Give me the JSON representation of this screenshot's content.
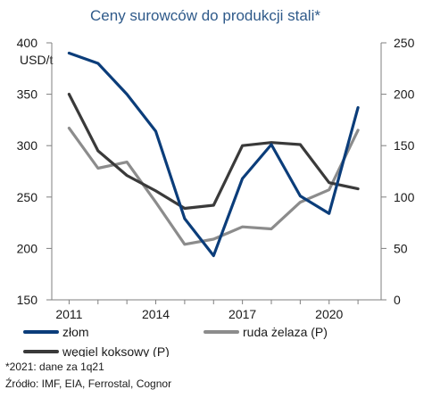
{
  "chart_data": {
    "type": "line",
    "title": "Ceny surowców do produkcji stali*",
    "unit_label": "USD/t",
    "x": [
      2011,
      2012,
      2013,
      2014,
      2015,
      2016,
      2017,
      2018,
      2019,
      2020,
      2021
    ],
    "x_tick_labels": [
      "2011",
      "2014",
      "2017",
      "2020"
    ],
    "x_ticks": [
      2011,
      2014,
      2017,
      2020
    ],
    "y_left": {
      "range": [
        150,
        400
      ],
      "ticks": [
        150,
        200,
        250,
        300,
        350,
        400
      ]
    },
    "y_right": {
      "range": [
        0,
        250
      ],
      "ticks": [
        0,
        50,
        100,
        150,
        200,
        250
      ]
    },
    "grid": false,
    "legend_position": "bottom",
    "series": [
      {
        "name": "złom",
        "axis": "left",
        "color": "#0b3d7a",
        "values": [
          390,
          380,
          350,
          314,
          229,
          193,
          268,
          301,
          251,
          234,
          337
        ]
      },
      {
        "name": "ruda żelaza (P)",
        "axis": "right",
        "color": "#8c8c8c",
        "values": [
          167,
          128,
          134,
          95,
          54,
          59,
          71,
          69,
          95,
          107,
          165
        ]
      },
      {
        "name": "węgiel koksowy (P)",
        "axis": "right",
        "color": "#3a3a3a",
        "values": [
          200,
          145,
          121,
          106,
          89,
          92,
          150,
          153,
          151,
          114,
          108
        ]
      }
    ]
  },
  "notes": {
    "footnote": "*2021: dane za 1q21",
    "source": "Źródło: IMF, EIA, Ferrostal, Cognor"
  }
}
